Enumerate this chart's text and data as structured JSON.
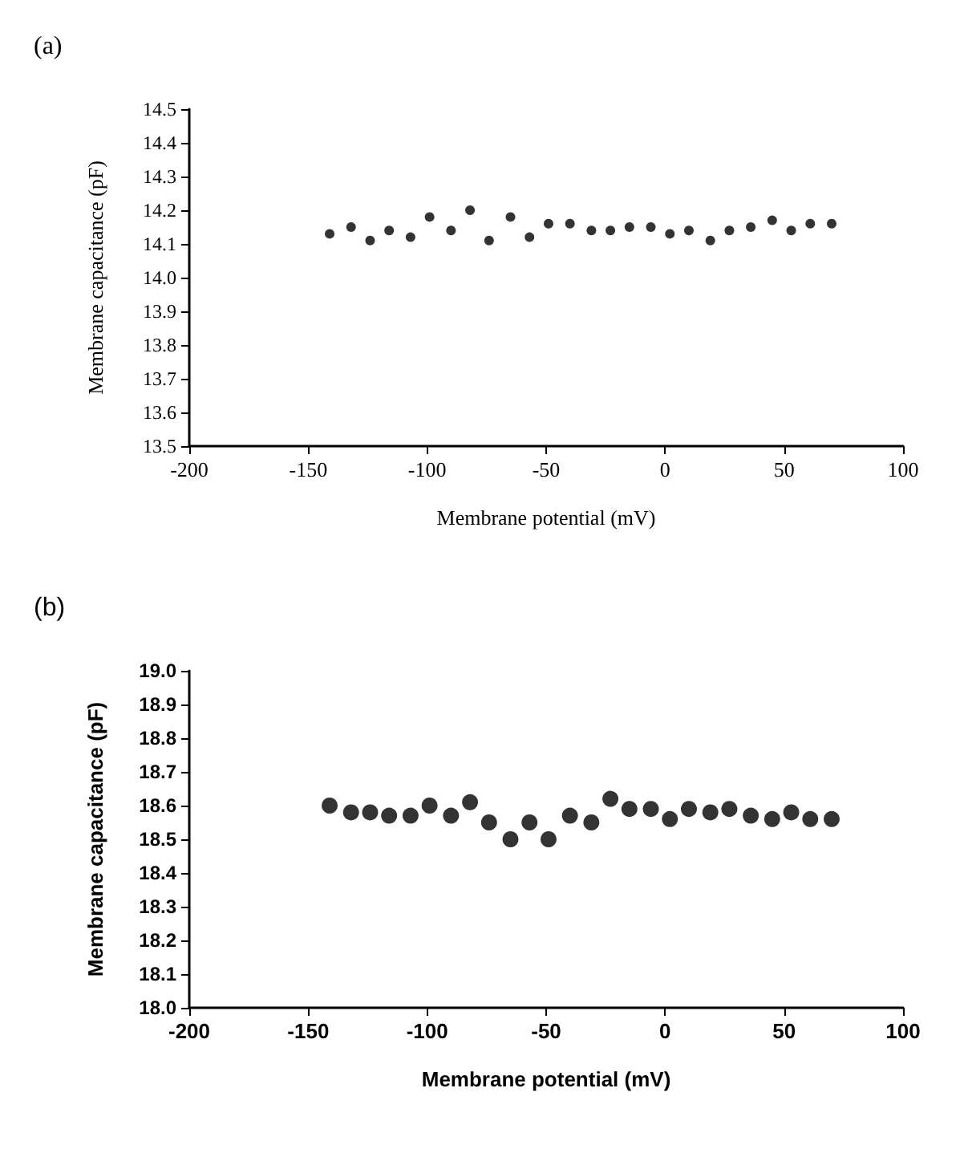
{
  "chart_data": [
    {
      "type": "scatter",
      "title": "(a)",
      "xlabel": "Membrane potential (mV)",
      "ylabel": "Membrane capacitance (pF)",
      "xlim": [
        -200,
        100
      ],
      "xticks": [
        -200,
        -150,
        -100,
        -50,
        0,
        50,
        100
      ],
      "ylim": [
        13.5,
        14.5
      ],
      "yticks": [
        13.5,
        13.6,
        13.7,
        13.8,
        13.9,
        {
          "value": 14,
          "label": "14.0"
        },
        14.1,
        14.2,
        14.3,
        14.4,
        14.5
      ],
      "grid": false,
      "marker": "circle",
      "x": [
        -141,
        -132,
        -124,
        -116,
        -107,
        -99,
        -90,
        -82,
        -74,
        -65,
        -57,
        -49,
        -40,
        -31,
        -23,
        -15,
        -6,
        2,
        10,
        19,
        27,
        36,
        45,
        53,
        61,
        70
      ],
      "series": [
        {
          "color": "#000000",
          "values": [
            14.13,
            14.15,
            14.11,
            14.14,
            14.12,
            14.18,
            14.14,
            14.2,
            14.11,
            14.18,
            14.12,
            14.16,
            14.16,
            14.14,
            14.14,
            14.15,
            14.15,
            14.13,
            14.14,
            14.11,
            14.14,
            14.15,
            14.17,
            14.14,
            14.16,
            14.16
          ]
        }
      ]
    },
    {
      "type": "scatter",
      "title": "(b)",
      "xlabel": "Membrane potential (mV)",
      "ylabel": "Membrane capacitance (pF)",
      "xlim": [
        -200,
        100
      ],
      "xticks": [
        -200,
        -150,
        -100,
        -50,
        0,
        50,
        100
      ],
      "ylim": [
        18,
        19
      ],
      "yticks": [
        {
          "value": 18,
          "label": "18.0"
        },
        18.1,
        18.2,
        18.3,
        18.4,
        18.5,
        18.6,
        18.7,
        18.8,
        18.9,
        {
          "value": 19,
          "label": "19.0"
        }
      ],
      "grid": false,
      "marker": "circle",
      "x": [
        -141,
        -132,
        -124,
        -116,
        -107,
        -99,
        -90,
        -82,
        -74,
        -65,
        -57,
        -49,
        -40,
        -31,
        -23,
        -15,
        -6,
        2,
        10,
        19,
        27,
        36,
        45,
        53,
        61,
        70
      ],
      "series": [
        {
          "color": "#000000",
          "values": [
            18.6,
            18.58,
            18.58,
            18.57,
            18.57,
            18.6,
            18.57,
            18.61,
            18.55,
            18.5,
            18.55,
            18.5,
            18.57,
            18.55,
            18.62,
            18.59,
            18.59,
            18.56,
            18.59,
            18.58,
            18.59,
            18.57,
            18.56,
            18.58,
            18.56,
            18.56
          ]
        }
      ]
    }
  ]
}
